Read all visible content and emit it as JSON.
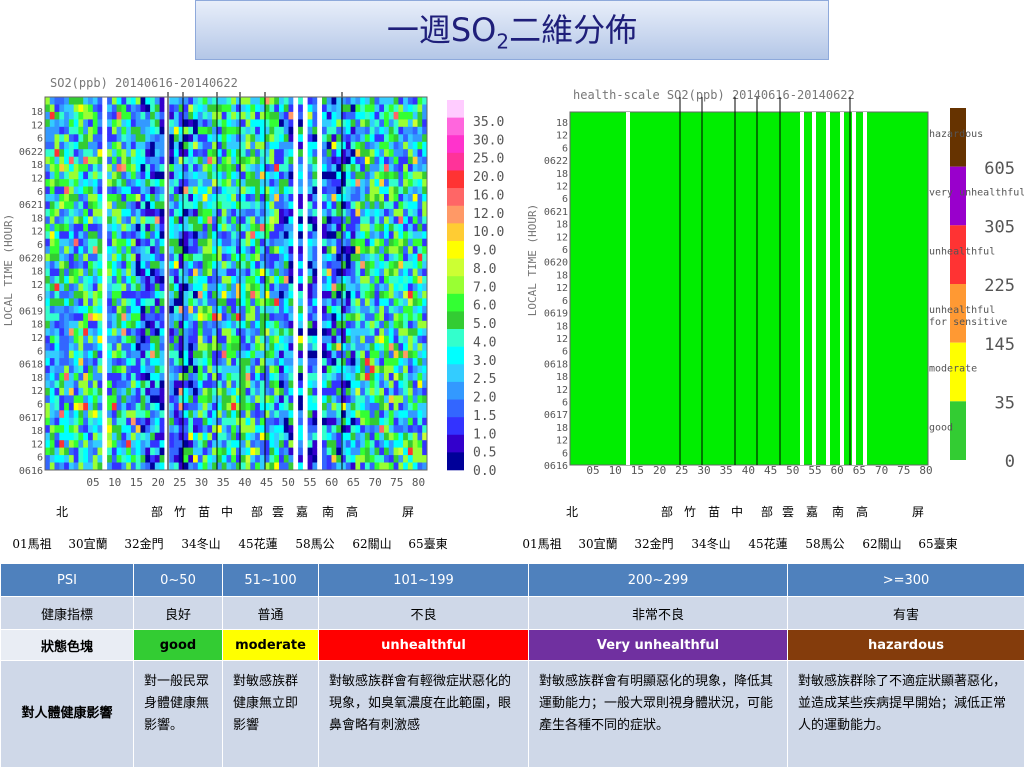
{
  "title": {
    "prefix": "一週SO",
    "sub": "2",
    "suffix": "二維分佈"
  },
  "left": {
    "title": "SO2(ppb) 20140616-20140622",
    "ylabel": "LOCAL TIME (HOUR)",
    "yticks": [
      "18",
      "12",
      "6",
      "0622",
      "18",
      "12",
      "6",
      "0621",
      "18",
      "12",
      "6",
      "0620",
      "18",
      "12",
      "6",
      "0619",
      "18",
      "12",
      "6",
      "0618",
      "18",
      "12",
      "6",
      "0617",
      "18",
      "12",
      "6",
      "0616"
    ],
    "xticks": [
      "05",
      "10",
      "15",
      "20",
      "25",
      "30",
      "35",
      "40",
      "45",
      "50",
      "55",
      "60",
      "65",
      "70",
      "75",
      "80"
    ],
    "colors": [
      "#ffccff",
      "#ff66dd",
      "#ff33cc",
      "#ff3399",
      "#ff3333",
      "#ff6666",
      "#ff9966",
      "#ffcc33",
      "#ffff00",
      "#ccff33",
      "#99ff33",
      "#33ff33",
      "#33cc33",
      "#33ffcc",
      "#00ffff",
      "#33ccff",
      "#3399ff",
      "#3366ff",
      "#3333ff",
      "#3300cc",
      "#000099"
    ],
    "colorbar_labels": [
      "35.0",
      "30.0",
      "25.0",
      "20.0",
      "16.0",
      "12.0",
      "10.0",
      "9.0",
      "8.0",
      "7.0",
      "6.0",
      "5.0",
      "4.0",
      "3.0",
      "2.5",
      "2.0",
      "1.5",
      "1.0",
      "0.5",
      "0.0"
    ]
  },
  "right": {
    "title": "health-scale SO2(ppb) 20140616-20140622",
    "ylabel": "LOCAL TIME (HOUR)",
    "colors": [
      "#663300",
      "#9900cc",
      "#ff3333",
      "#ff9933",
      "#ffff00",
      "#33cc33"
    ],
    "categories": [
      "hazardous",
      "very unhealthful",
      "unhealthful",
      "unhealthful for sensitive",
      "moderate",
      "good"
    ],
    "colorbar_labels": [
      "605",
      "305",
      "225",
      "145",
      "35",
      "0"
    ]
  },
  "regions": [
    "北",
    "部",
    "竹",
    "苗",
    "中",
    "部",
    "雲",
    "嘉",
    "南",
    "高",
    "屏"
  ],
  "stations": [
    "01馬祖",
    "30宜蘭",
    "32金門",
    "34冬山",
    "45花蓮",
    "58馬公",
    "62關山",
    "65臺東"
  ],
  "table": {
    "rows": [
      [
        "PSI",
        "0~50",
        "51~100",
        "101~199",
        "200~299",
        ">=300"
      ],
      [
        "健康指標",
        "良好",
        "普通",
        "不良",
        "非常不良",
        "有害"
      ],
      [
        "狀態色塊",
        "good",
        "moderate",
        "unhealthful",
        "Very unhealthful",
        "hazardous"
      ],
      [
        "對人體健康影響",
        "對一般民眾身體健康無影響。",
        "對敏感族群健康無立即影響",
        "對敏感族群會有輕微症狀惡化的現象，如臭氧濃度在此範圍，眼鼻會略有刺激感",
        "對敏感族群會有明顯惡化的現象，降低其運動能力；一般大眾則視身體狀況，可能產生各種不同的症狀。",
        "對敏感族群除了不適症狀顯著惡化，並造成某些疾病提早開始；減低正常人的運動能力。"
      ]
    ],
    "status_colors": [
      "#33cc33",
      "#ffff00",
      "#ff0000",
      "#7030a0",
      "#843c0c"
    ]
  }
}
